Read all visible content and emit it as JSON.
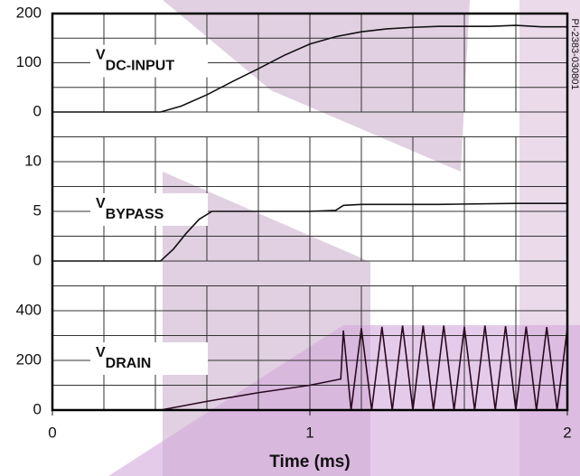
{
  "figure_id": "PI-2383-030801",
  "chart_data": [
    {
      "type": "line",
      "label_main": "V",
      "label_sub": "DC-INPUT",
      "xlim": [
        0,
        2
      ],
      "ylim": [
        0,
        200
      ],
      "yticks": [
        0,
        100,
        200
      ],
      "ygrid": [
        0,
        50,
        100,
        150,
        200
      ],
      "xgrid": [
        0,
        0.2,
        0.4,
        0.6,
        0.8,
        1,
        1.2,
        1.4,
        1.6,
        1.8,
        2
      ],
      "series": [
        {
          "color": "#111111",
          "x": [
            0,
            0.42,
            0.5,
            0.6,
            0.7,
            0.8,
            0.9,
            1.0,
            1.1,
            1.2,
            1.3,
            1.4,
            1.5,
            1.6,
            1.7,
            1.8,
            1.9,
            2.0
          ],
          "values": [
            0,
            0,
            12,
            35,
            62,
            88,
            115,
            138,
            153,
            163,
            169,
            172,
            174,
            174,
            174,
            176,
            173,
            173
          ]
        }
      ]
    },
    {
      "type": "line",
      "label_main": "V",
      "label_sub": "BYPASS",
      "xlim": [
        0,
        2
      ],
      "ylim": [
        0,
        10
      ],
      "yticks": [
        0,
        5,
        10
      ],
      "ygrid": [
        0,
        2.5,
        5,
        7.5,
        10,
        12.5
      ],
      "xgrid": [
        0,
        0.2,
        0.4,
        0.6,
        0.8,
        1,
        1.2,
        1.4,
        1.6,
        1.8,
        2
      ],
      "series": [
        {
          "color": "#111111",
          "x": [
            0,
            0.42,
            0.47,
            0.52,
            0.57,
            0.62,
            0.8,
            1.0,
            1.1,
            1.13,
            1.2,
            1.5,
            1.8,
            2.0
          ],
          "values": [
            0,
            0,
            1.2,
            2.8,
            4.2,
            5,
            5,
            5,
            5.1,
            5.6,
            5.7,
            5.7,
            5.8,
            5.8
          ]
        }
      ]
    },
    {
      "type": "line",
      "label_main": "V",
      "label_sub": "DRAIN",
      "xlim": [
        0,
        2
      ],
      "ylim": [
        0,
        400
      ],
      "yticks": [
        0,
        200,
        400
      ],
      "ygrid": [
        0,
        100,
        200,
        300,
        400,
        500
      ],
      "xgrid": [
        0,
        0.2,
        0.4,
        0.6,
        0.8,
        1,
        1.2,
        1.4,
        1.6,
        1.8,
        2
      ],
      "xticks": [
        0,
        1,
        2
      ],
      "xlabel": "Time (ms)",
      "series": [
        {
          "color": "#2a0a20",
          "x": [
            0,
            0.42,
            0.6,
            0.8,
            1.0,
            1.12,
            1.13,
            1.16,
            1.2,
            1.24,
            1.28,
            1.32,
            1.36,
            1.4,
            1.44,
            1.48,
            1.52,
            1.56,
            1.6,
            1.64,
            1.68,
            1.72,
            1.76,
            1.8,
            1.84,
            1.88,
            1.92,
            1.96,
            2.0
          ],
          "values": [
            0,
            0,
            35,
            70,
            100,
            125,
            320,
            0,
            330,
            0,
            335,
            0,
            340,
            0,
            340,
            0,
            340,
            0,
            335,
            0,
            340,
            0,
            338,
            0,
            336,
            0,
            334,
            0,
            330
          ]
        }
      ]
    }
  ]
}
